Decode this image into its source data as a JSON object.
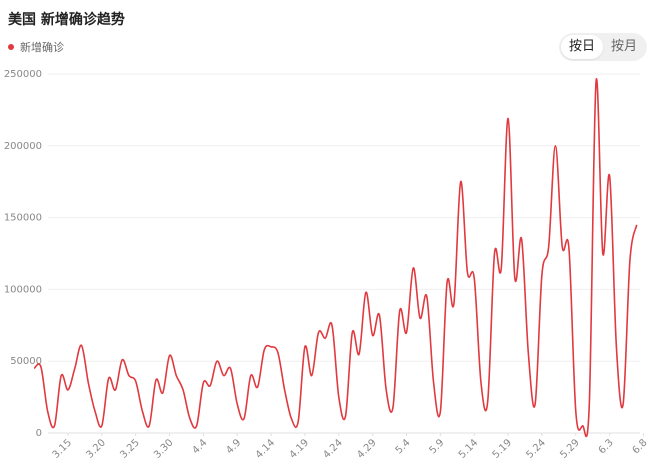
{
  "header": {
    "title": "美国 新增确诊趋势"
  },
  "legend": {
    "label": "新增确诊"
  },
  "toggle": {
    "day": "按日",
    "month": "按月",
    "active": "day"
  },
  "colors": {
    "line": "#e0393e",
    "grid": "#efefef",
    "axis": "#e0e0e0"
  },
  "chart_data": {
    "type": "line",
    "title": "美国 新增确诊趋势",
    "xlabel": "",
    "ylabel": "",
    "ylim": [
      0,
      250000
    ],
    "yticks": [
      0,
      50000,
      100000,
      150000,
      200000,
      250000
    ],
    "grid": true,
    "legend_position": "top-left",
    "xtick_labels": [
      "3.15",
      "3.20",
      "3.25",
      "3.30",
      "4.4",
      "4.9",
      "4.14",
      "4.19",
      "4.24",
      "4.29",
      "5.4",
      "5.9",
      "5.14",
      "5.19",
      "5.24",
      "5.29",
      "6.3",
      "6.8"
    ],
    "series": [
      {
        "name": "新增确诊",
        "start_tick": "3.15",
        "start_offset_days": -5,
        "values": [
          45000,
          46000,
          15000,
          5000,
          40000,
          30000,
          45000,
          61000,
          35000,
          15000,
          5000,
          38000,
          30000,
          51000,
          40000,
          36000,
          15000,
          5000,
          37000,
          28000,
          54000,
          40000,
          30000,
          10000,
          5000,
          35000,
          33000,
          50000,
          40000,
          45000,
          20000,
          10000,
          40000,
          32000,
          58000,
          60000,
          56000,
          30000,
          10000,
          8000,
          60000,
          40000,
          70000,
          66000,
          75000,
          25000,
          12000,
          70000,
          55000,
          98000,
          68000,
          82000,
          30000,
          18000,
          85000,
          70000,
          115000,
          80000,
          95000,
          35000,
          15000,
          105000,
          90000,
          175000,
          112000,
          108000,
          35000,
          22000,
          125000,
          115000,
          219000,
          108000,
          135000,
          55000,
          20000,
          110000,
          130000,
          200000,
          130000,
          128000,
          15000,
          5000,
          20000,
          245000,
          125000,
          179000,
          60000,
          20000,
          120000,
          145000
        ]
      }
    ]
  }
}
